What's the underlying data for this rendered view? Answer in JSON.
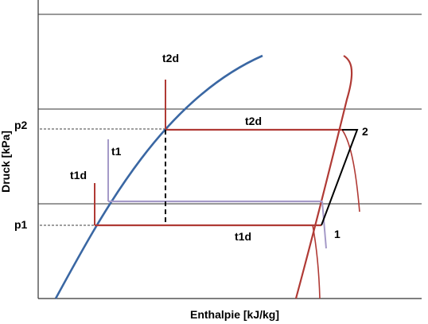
{
  "diagram": {
    "x_axis_label": "Enthalpie [kJ/kg]",
    "y_axis_label": "Druck [kPa]",
    "labels": {
      "t2d_top": "t2d",
      "t2d_line": "t2d",
      "t1": "t1",
      "t1d_left": "t1d",
      "t1d_line": "t1d",
      "p2": "p2",
      "p1": "p1",
      "point_1": "1",
      "point_2": "2"
    },
    "colors": {
      "saturated_liquid_line": "#3a67a3",
      "isotherm_dew": "#b03a35",
      "isotherm_boiling": "#a59ac8",
      "superheat_segment": "#000000",
      "reference_dashes": "#000000",
      "grid_lines": "#333333"
    }
  }
}
